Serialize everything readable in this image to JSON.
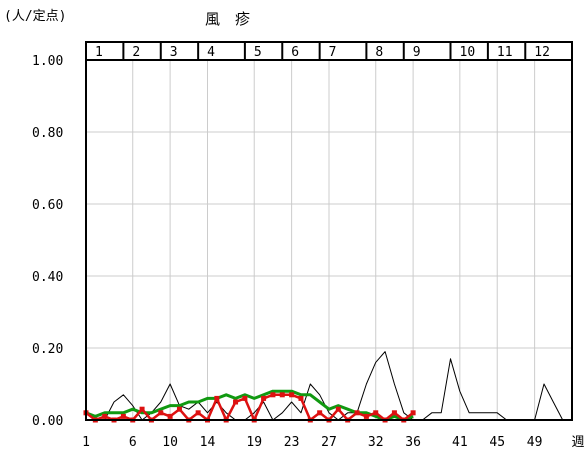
{
  "chart_data": {
    "type": "line",
    "title": "風　疹",
    "unit_label": "(人/定点)",
    "x_axis_suffix": "週",
    "ylim": [
      0,
      1.0
    ],
    "y_ticks": [
      "1.00",
      "0.80",
      "0.60",
      "0.40",
      "0.20",
      "0.00"
    ],
    "y_tick_values": [
      1.0,
      0.8,
      0.6,
      0.4,
      0.2,
      0.0
    ],
    "x_ticks": [
      "1",
      "6",
      "10",
      "14",
      "19",
      "23",
      "27",
      "32",
      "36",
      "41",
      "45",
      "49"
    ],
    "x_tick_weeks": [
      1,
      6,
      10,
      14,
      19,
      23,
      27,
      32,
      36,
      41,
      45,
      49
    ],
    "xlim": [
      1,
      53
    ],
    "months": [
      "1",
      "2",
      "3",
      "4",
      "5",
      "6",
      "7",
      "8",
      "9",
      "10",
      "11",
      "12"
    ],
    "month_boundaries": [
      1,
      5,
      9,
      13,
      18,
      22,
      26,
      31,
      35,
      40,
      44,
      48,
      53
    ],
    "grid": true,
    "legend": "none",
    "series": [
      {
        "color": "#000000",
        "stroke_width": 1,
        "points": [
          [
            1,
            0.02
          ],
          [
            2,
            0.0
          ],
          [
            3,
            0.0
          ],
          [
            4,
            0.05
          ],
          [
            5,
            0.07
          ],
          [
            6,
            0.04
          ],
          [
            7,
            0.0
          ],
          [
            8,
            0.02
          ],
          [
            9,
            0.05
          ],
          [
            10,
            0.1
          ],
          [
            11,
            0.04
          ],
          [
            12,
            0.03
          ],
          [
            13,
            0.05
          ],
          [
            14,
            0.02
          ],
          [
            15,
            0.05
          ],
          [
            16,
            0.02
          ],
          [
            17,
            0.0
          ],
          [
            18,
            0.0
          ],
          [
            19,
            0.02
          ],
          [
            20,
            0.05
          ],
          [
            21,
            0.0
          ],
          [
            22,
            0.02
          ],
          [
            23,
            0.05
          ],
          [
            24,
            0.02
          ],
          [
            25,
            0.1
          ],
          [
            26,
            0.07
          ],
          [
            27,
            0.02
          ],
          [
            28,
            0.0
          ],
          [
            29,
            0.02
          ],
          [
            30,
            0.02
          ],
          [
            31,
            0.1
          ],
          [
            32,
            0.16
          ],
          [
            33,
            0.19
          ],
          [
            34,
            0.1
          ],
          [
            35,
            0.02
          ],
          [
            36,
            0.0
          ],
          [
            37,
            0.0
          ],
          [
            38,
            0.02
          ],
          [
            39,
            0.02
          ],
          [
            40,
            0.17
          ],
          [
            41,
            0.08
          ],
          [
            42,
            0.02
          ],
          [
            43,
            0.02
          ],
          [
            44,
            0.02
          ],
          [
            45,
            0.02
          ],
          [
            46,
            0.0
          ],
          [
            47,
            0.0
          ],
          [
            48,
            0.0
          ],
          [
            49,
            0.0
          ],
          [
            50,
            0.1
          ],
          [
            51,
            0.05
          ],
          [
            52,
            0.0
          ]
        ]
      },
      {
        "color": "#119911",
        "stroke_width": 3,
        "points": [
          [
            1,
            0.02
          ],
          [
            2,
            0.01
          ],
          [
            3,
            0.02
          ],
          [
            4,
            0.02
          ],
          [
            5,
            0.02
          ],
          [
            6,
            0.03
          ],
          [
            7,
            0.02
          ],
          [
            8,
            0.02
          ],
          [
            9,
            0.03
          ],
          [
            10,
            0.04
          ],
          [
            11,
            0.04
          ],
          [
            12,
            0.05
          ],
          [
            13,
            0.05
          ],
          [
            14,
            0.06
          ],
          [
            15,
            0.06
          ],
          [
            16,
            0.07
          ],
          [
            17,
            0.06
          ],
          [
            18,
            0.07
          ],
          [
            19,
            0.06
          ],
          [
            20,
            0.07
          ],
          [
            21,
            0.08
          ],
          [
            22,
            0.08
          ],
          [
            23,
            0.08
          ],
          [
            24,
            0.07
          ],
          [
            25,
            0.07
          ],
          [
            26,
            0.05
          ],
          [
            27,
            0.03
          ],
          [
            28,
            0.04
          ],
          [
            29,
            0.03
          ],
          [
            30,
            0.02
          ],
          [
            31,
            0.02
          ],
          [
            32,
            0.01
          ],
          [
            33,
            0.0
          ],
          [
            34,
            0.01
          ],
          [
            35,
            0.0
          ],
          [
            36,
            0.01
          ]
        ]
      },
      {
        "color": "#dd1111",
        "stroke_width": 2.5,
        "markers": true,
        "points": [
          [
            1,
            0.02
          ],
          [
            2,
            0.0
          ],
          [
            3,
            0.01
          ],
          [
            4,
            0.0
          ],
          [
            5,
            0.01
          ],
          [
            6,
            0.0
          ],
          [
            7,
            0.03
          ],
          [
            8,
            0.0
          ],
          [
            9,
            0.02
          ],
          [
            10,
            0.01
          ],
          [
            11,
            0.03
          ],
          [
            12,
            0.0
          ],
          [
            13,
            0.02
          ],
          [
            14,
            0.0
          ],
          [
            15,
            0.06
          ],
          [
            16,
            0.0
          ],
          [
            17,
            0.05
          ],
          [
            18,
            0.06
          ],
          [
            19,
            0.0
          ],
          [
            20,
            0.06
          ],
          [
            21,
            0.07
          ],
          [
            22,
            0.07
          ],
          [
            23,
            0.07
          ],
          [
            24,
            0.06
          ],
          [
            25,
            0.0
          ],
          [
            26,
            0.02
          ],
          [
            27,
            0.0
          ],
          [
            28,
            0.03
          ],
          [
            29,
            0.0
          ],
          [
            30,
            0.02
          ],
          [
            31,
            0.01
          ],
          [
            32,
            0.02
          ],
          [
            33,
            0.0
          ],
          [
            34,
            0.02
          ],
          [
            35,
            0.0
          ],
          [
            36,
            0.02
          ]
        ]
      }
    ]
  }
}
